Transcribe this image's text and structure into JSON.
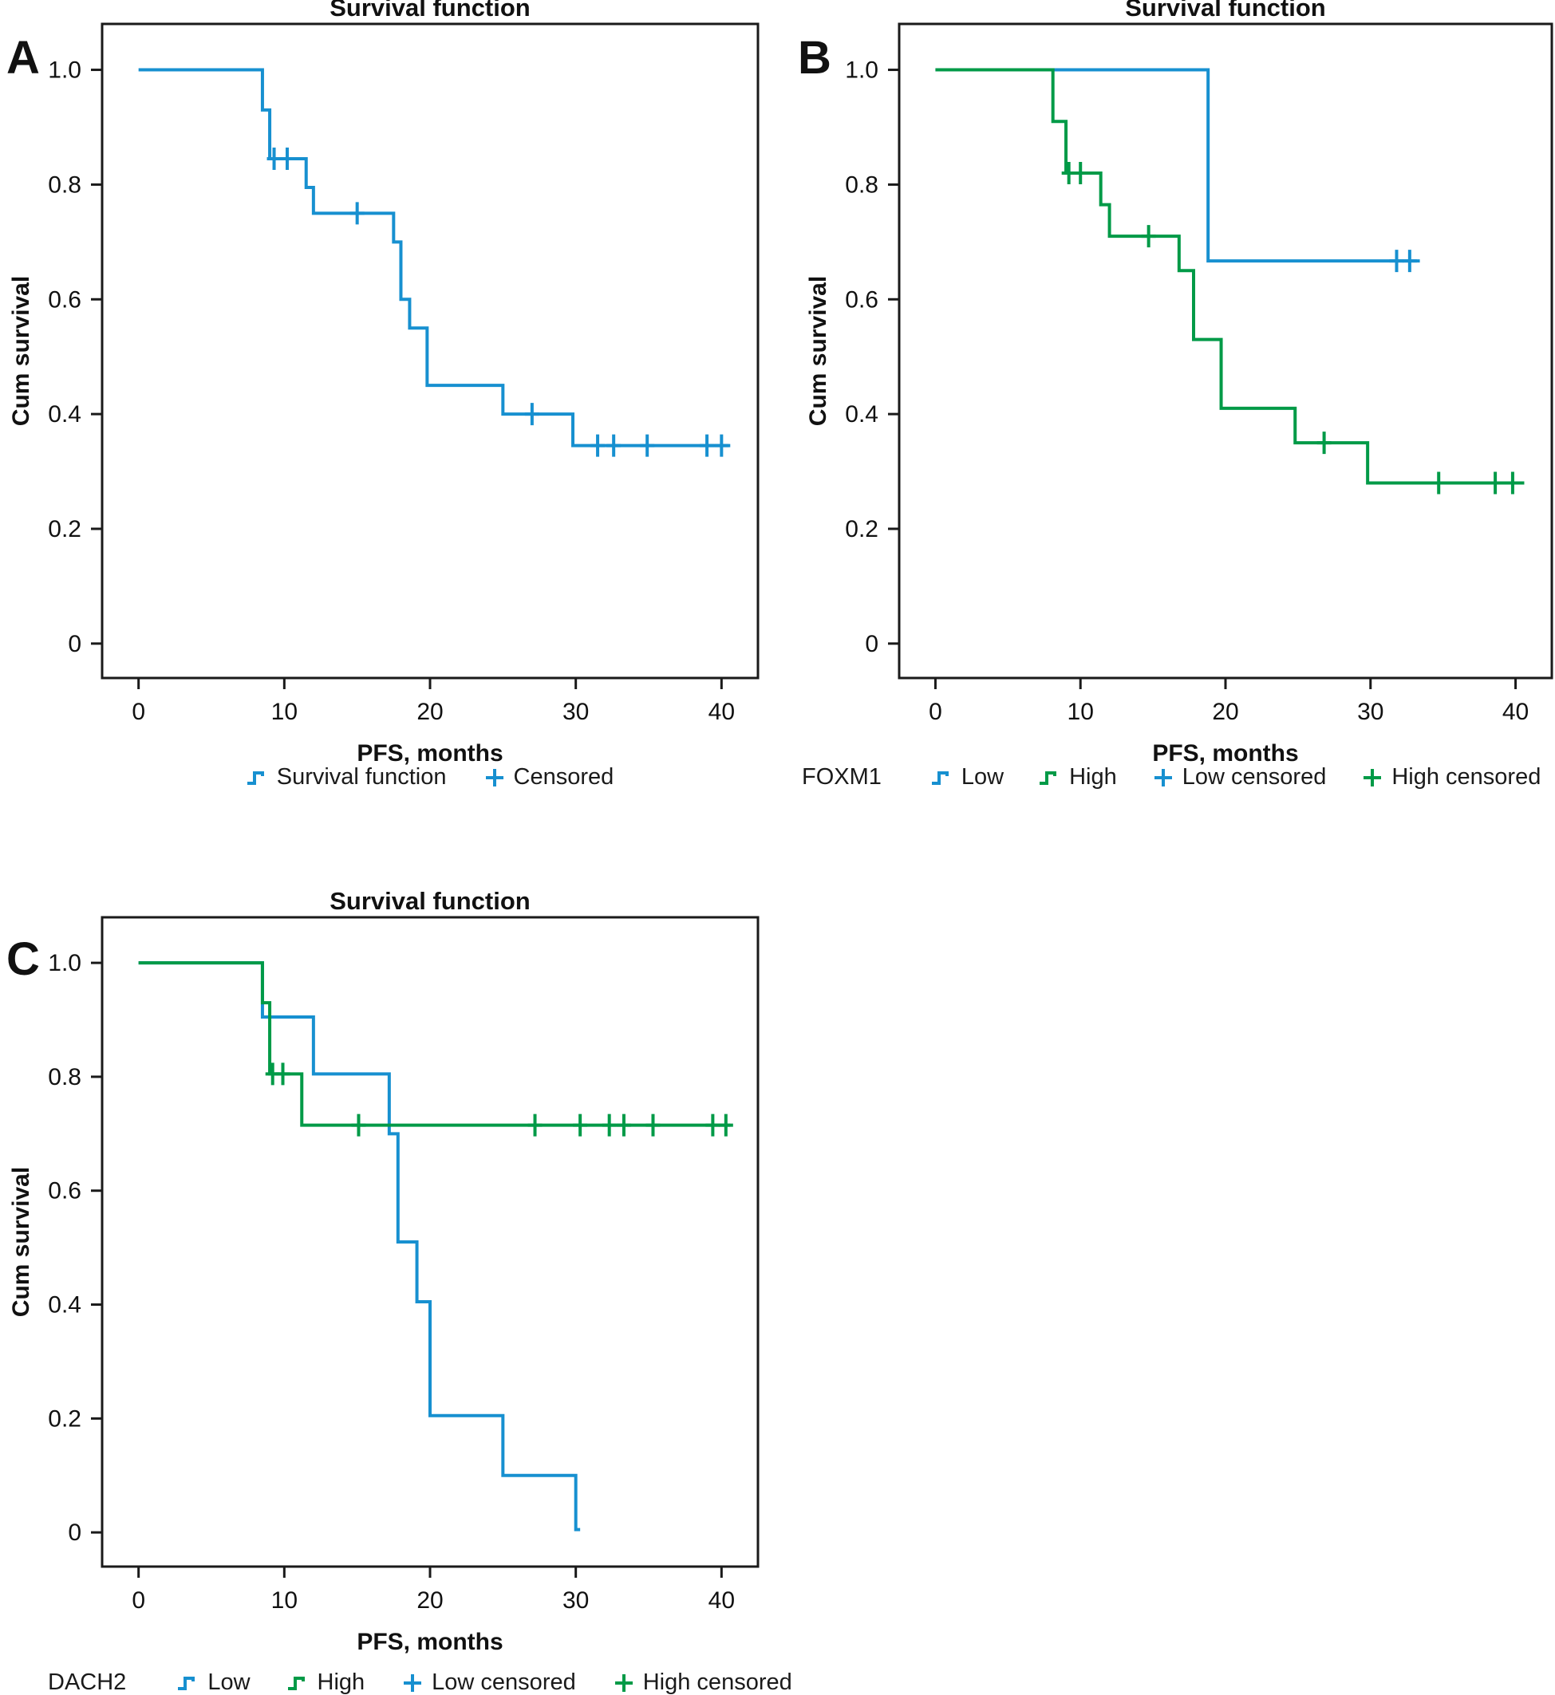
{
  "figure": {
    "background": "#ffffff",
    "description": "Three Kaplan-Meier progression-free survival plots"
  },
  "colors": {
    "blue": "#1790d0",
    "green": "#009a47",
    "axis": "#1a1a1a",
    "text": "#111111"
  },
  "chart_data": [
    {
      "type": "line",
      "subtype": "kaplan_meier_step",
      "panel": "A",
      "letter": "A",
      "title": "Survival function",
      "xlabel": "PFS, months",
      "ylabel": "Cum survival",
      "xlim": [
        -2.5,
        42.5
      ],
      "ylim": [
        -0.06,
        1.08
      ],
      "x_ticks": [
        0,
        10,
        20,
        30,
        40
      ],
      "y_ticks": [
        0,
        0.2,
        0.4,
        0.6,
        0.8,
        1.0
      ],
      "y_tick_labels": [
        "0",
        "0.2",
        "0.4",
        "0.6",
        "0.8",
        "1.0"
      ],
      "grid": false,
      "legend_prefix": "",
      "legend_position": "bottom-center",
      "series": [
        {
          "name": "Survival function",
          "color_key": "blue",
          "start": [
            0,
            1.0
          ],
          "drops": [
            [
              8.5,
              0.93
            ],
            [
              9.0,
              0.845
            ],
            [
              11.5,
              0.795
            ],
            [
              12.0,
              0.75
            ],
            [
              17.5,
              0.7
            ],
            [
              18.0,
              0.6
            ],
            [
              18.6,
              0.55
            ],
            [
              19.8,
              0.45
            ],
            [
              25.0,
              0.4
            ],
            [
              29.8,
              0.345
            ]
          ],
          "end_x": 40.6,
          "censored": [
            [
              9.3,
              0.845
            ],
            [
              10.2,
              0.845
            ],
            [
              15.0,
              0.75
            ],
            [
              27.0,
              0.4
            ],
            [
              31.5,
              0.345
            ],
            [
              32.6,
              0.345
            ],
            [
              34.9,
              0.345
            ],
            [
              39.0,
              0.345
            ],
            [
              40.0,
              0.345
            ]
          ]
        }
      ],
      "legend": [
        {
          "icon": "step",
          "color_key": "blue",
          "label": "Survival function"
        },
        {
          "icon": "plus",
          "color_key": "blue",
          "label": "Censored"
        }
      ]
    },
    {
      "type": "line",
      "subtype": "kaplan_meier_step",
      "panel": "B",
      "letter": "B",
      "title": "Survival function",
      "xlabel": "PFS, months",
      "ylabel": "Cum survival",
      "xlim": [
        -2.5,
        42.5
      ],
      "ylim": [
        -0.06,
        1.08
      ],
      "x_ticks": [
        0,
        10,
        20,
        30,
        40
      ],
      "y_ticks": [
        0,
        0.2,
        0.4,
        0.6,
        0.8,
        1.0
      ],
      "y_tick_labels": [
        "0",
        "0.2",
        "0.4",
        "0.6",
        "0.8",
        "1.0"
      ],
      "grid": false,
      "legend_prefix": "FOXM1",
      "legend_position": "bottom-left",
      "series": [
        {
          "name": "Low",
          "color_key": "blue",
          "start": [
            0,
            1.0
          ],
          "drops": [
            [
              18.8,
              0.667
            ]
          ],
          "end_x": 33.4,
          "censored": [
            [
              31.8,
              0.667
            ],
            [
              32.7,
              0.667
            ]
          ]
        },
        {
          "name": "High",
          "color_key": "green",
          "start": [
            0,
            1.0
          ],
          "drops": [
            [
              8.1,
              0.91
            ],
            [
              9.0,
              0.82
            ],
            [
              11.4,
              0.765
            ],
            [
              12.0,
              0.71
            ],
            [
              16.8,
              0.65
            ],
            [
              17.8,
              0.53
            ],
            [
              19.7,
              0.41
            ],
            [
              24.8,
              0.35
            ],
            [
              29.8,
              0.28
            ]
          ],
          "end_x": 40.6,
          "censored": [
            [
              9.2,
              0.82
            ],
            [
              10.0,
              0.82
            ],
            [
              14.7,
              0.71
            ],
            [
              26.8,
              0.35
            ],
            [
              34.7,
              0.28
            ],
            [
              38.6,
              0.28
            ],
            [
              39.8,
              0.28
            ]
          ]
        }
      ],
      "legend": [
        {
          "icon": "step",
          "color_key": "blue",
          "label": "Low"
        },
        {
          "icon": "step",
          "color_key": "green",
          "label": "High"
        },
        {
          "icon": "plus",
          "color_key": "blue",
          "label": "Low censored"
        },
        {
          "icon": "plus",
          "color_key": "green",
          "label": "High censored"
        }
      ]
    },
    {
      "type": "line",
      "subtype": "kaplan_meier_step",
      "panel": "C",
      "letter": "C",
      "title": "Survival function",
      "xlabel": "PFS, months",
      "ylabel": "Cum survival",
      "xlim": [
        -2.5,
        42.5
      ],
      "ylim": [
        -0.06,
        1.08
      ],
      "x_ticks": [
        0,
        10,
        20,
        30,
        40
      ],
      "y_ticks": [
        0,
        0.2,
        0.4,
        0.6,
        0.8,
        1.0
      ],
      "y_tick_labels": [
        "0",
        "0.2",
        "0.4",
        "0.6",
        "0.8",
        "1.0"
      ],
      "grid": false,
      "legend_prefix": "DACH2",
      "legend_position": "bottom-left",
      "series": [
        {
          "name": "Low",
          "color_key": "blue",
          "start": [
            0,
            1.0
          ],
          "drops": [
            [
              8.5,
              0.905
            ],
            [
              12.0,
              0.805
            ],
            [
              17.2,
              0.7
            ],
            [
              17.8,
              0.51
            ],
            [
              19.1,
              0.405
            ],
            [
              20.0,
              0.205
            ],
            [
              25.0,
              0.1
            ],
            [
              30.0,
              0.005
            ]
          ],
          "end_x": 30.3,
          "censored": []
        },
        {
          "name": "High",
          "color_key": "green",
          "start": [
            0,
            1.0
          ],
          "drops": [
            [
              8.5,
              0.93
            ],
            [
              9.0,
              0.805
            ],
            [
              11.2,
              0.715
            ]
          ],
          "end_x": 40.6,
          "censored": [
            [
              9.2,
              0.805
            ],
            [
              9.9,
              0.805
            ],
            [
              15.1,
              0.715
            ],
            [
              27.2,
              0.715
            ],
            [
              30.3,
              0.715
            ],
            [
              32.3,
              0.715
            ],
            [
              33.3,
              0.715
            ],
            [
              35.3,
              0.715
            ],
            [
              39.4,
              0.715
            ],
            [
              40.3,
              0.715
            ]
          ]
        }
      ],
      "legend": [
        {
          "icon": "step",
          "color_key": "blue",
          "label": "Low"
        },
        {
          "icon": "step",
          "color_key": "green",
          "label": "High"
        },
        {
          "icon": "plus",
          "color_key": "blue",
          "label": "Low censored"
        },
        {
          "icon": "plus",
          "color_key": "green",
          "label": "High censored"
        }
      ]
    }
  ]
}
